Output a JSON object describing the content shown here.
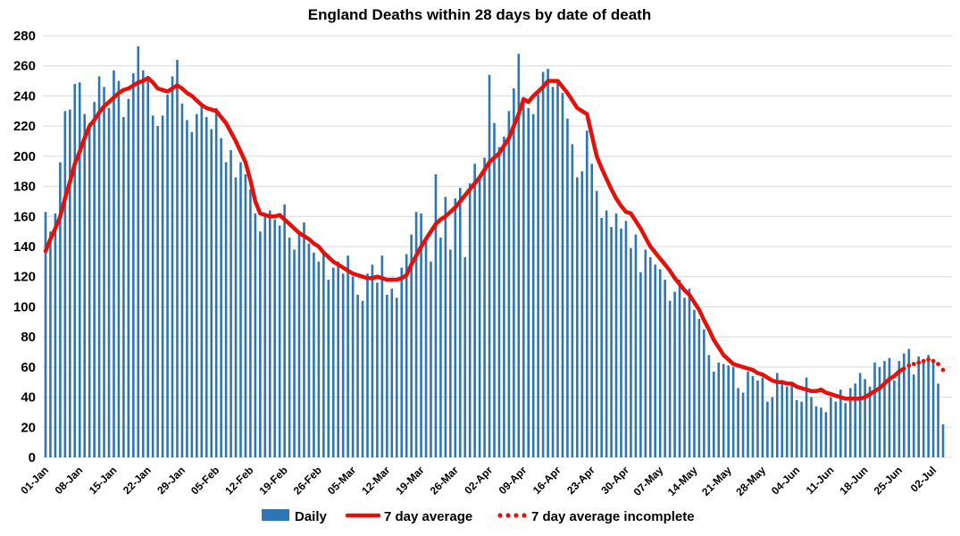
{
  "chart_data": {
    "type": "bar",
    "title": "England Deaths within 28 days by date of death",
    "xlabel": "",
    "ylabel": "",
    "ylim": [
      0,
      280
    ],
    "y_ticks": [
      0,
      20,
      40,
      60,
      80,
      100,
      120,
      140,
      160,
      180,
      200,
      220,
      240,
      260,
      280
    ],
    "grid": true,
    "legend_position": "bottom",
    "x_start": "01-Jan",
    "x_end": "04-Jul",
    "x_tick_interval_days": 7,
    "x_tick_labels": [
      "01-Jan",
      "08-Jan",
      "15-Jan",
      "22-Jan",
      "29-Jan",
      "05-Feb",
      "12-Feb",
      "19-Feb",
      "26-Feb",
      "05-Mar",
      "12-Mar",
      "19-Mar",
      "26-Mar",
      "02-Apr",
      "09-Apr",
      "16-Apr",
      "23-Apr",
      "30-Apr",
      "07-May",
      "14-May",
      "21-May",
      "28-May",
      "04-Jun",
      "11-Jun",
      "18-Jun",
      "25-Jun",
      "02-Jul"
    ],
    "series": [
      {
        "name": "Daily",
        "type": "bar"
      },
      {
        "name": "7 day average",
        "type": "line"
      },
      {
        "name": "7 day average incomplete",
        "type": "dotted-line"
      }
    ],
    "daily": [
      163,
      150,
      162,
      196,
      230,
      231,
      248,
      249,
      228,
      222,
      236,
      253,
      246,
      232,
      257,
      250,
      226,
      238,
      255,
      273,
      257,
      251,
      227,
      220,
      227,
      241,
      253,
      264,
      235,
      224,
      216,
      228,
      233,
      226,
      218,
      232,
      212,
      196,
      204,
      186,
      196,
      188,
      178,
      162,
      150,
      160,
      164,
      158,
      154,
      168,
      146,
      138,
      150,
      156,
      142,
      136,
      130,
      136,
      118,
      126,
      130,
      122,
      134,
      120,
      108,
      104,
      122,
      128,
      116,
      134,
      108,
      112,
      106,
      126,
      135,
      148,
      163,
      162,
      143,
      130,
      188,
      146,
      173,
      138,
      172,
      179,
      133,
      182,
      195,
      186,
      199,
      254,
      222,
      206,
      213,
      230,
      245,
      268,
      237,
      232,
      228,
      241,
      256,
      258,
      246,
      250,
      242,
      225,
      208,
      186,
      190,
      217,
      195,
      177,
      159,
      164,
      153,
      162,
      152,
      157,
      139,
      148,
      123,
      138,
      133,
      128,
      125,
      118,
      104,
      110,
      118,
      106,
      112,
      98,
      92,
      85,
      68,
      57,
      63,
      62,
      61,
      60,
      46,
      43,
      57,
      54,
      51,
      53,
      37,
      40,
      56,
      51,
      47,
      48,
      38,
      37,
      53,
      40,
      34,
      33,
      30,
      40,
      37,
      45,
      36,
      46,
      49,
      56,
      52,
      47,
      63,
      60,
      64,
      66,
      51,
      64,
      69,
      72,
      55,
      67,
      65,
      68,
      65,
      49,
      22
    ],
    "avg7": [
      137,
      145,
      152,
      160,
      172,
      183,
      195,
      203,
      212,
      220,
      224,
      229,
      233,
      236,
      239,
      242,
      244,
      245,
      247,
      249,
      250,
      252,
      249,
      245,
      244,
      243,
      245,
      247,
      245,
      242,
      240,
      237,
      234,
      232,
      231,
      230,
      226,
      222,
      216,
      210,
      203,
      196,
      184,
      170,
      162,
      161,
      160,
      160,
      161,
      158,
      155,
      152,
      149,
      147,
      145,
      142,
      140,
      136,
      133,
      130,
      128,
      126,
      124,
      122,
      121,
      120,
      119,
      119,
      120,
      119,
      118,
      118,
      118,
      119,
      121,
      128,
      134,
      140,
      145,
      150,
      155,
      158,
      160,
      163,
      166,
      170,
      174,
      178,
      182,
      186,
      191,
      196,
      199,
      202,
      207,
      212,
      220,
      228,
      238,
      236,
      240,
      243,
      246,
      250,
      250,
      250,
      246,
      242,
      237,
      232,
      230,
      228,
      214,
      200,
      192,
      185,
      178,
      172,
      167,
      163,
      162,
      157,
      152,
      146,
      140,
      136,
      132,
      128,
      124,
      119,
      115,
      111,
      108,
      103,
      98,
      91,
      85,
      78,
      73,
      68,
      65,
      62,
      61,
      60,
      59,
      58,
      56,
      55,
      53,
      51,
      50,
      50,
      49,
      49,
      47,
      46,
      45,
      44,
      44,
      45,
      43,
      42,
      41,
      40,
      39,
      39,
      39,
      39,
      40,
      42,
      44,
      46,
      49,
      52,
      54,
      57,
      59,
      61,
      62,
      63,
      64,
      65,
      64,
      62,
      58
    ],
    "avg7_incomplete_from_index": 177,
    "legend": {
      "daily": "Daily",
      "avg": "7 day average",
      "avg_incomplete": "7 day average incomplete"
    },
    "colors": {
      "bar": "#2E75B6",
      "line": "#E2120B",
      "grid": "#D9D9D9",
      "text": "#000000",
      "background": "#FFFFFF"
    }
  }
}
